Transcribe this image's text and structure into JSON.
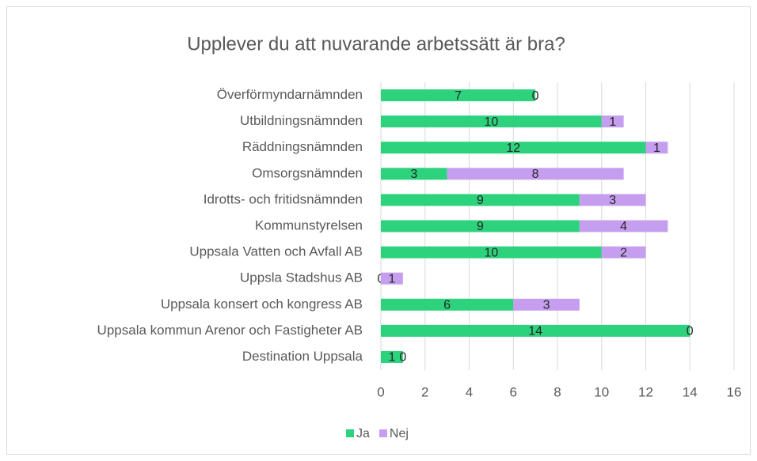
{
  "chart_data": {
    "type": "bar",
    "orientation": "horizontal",
    "stacked": true,
    "title": "Upplever du att nuvarande arbetssätt är bra?",
    "categories": [
      "Överförmyndarnämnden",
      "Utbildningsnämnden",
      "Räddningsnämnden",
      "Omsorgsnämnden",
      "Idrotts- och fritidsnämnden",
      "Kommunstyrelsen",
      "Uppsala Vatten och Avfall AB",
      "Uppsla Stadshus AB",
      "Uppsala konsert och kongress AB",
      "Uppsala kommun Arenor och Fastigheter AB",
      "Destination Uppsala"
    ],
    "series": [
      {
        "name": "Ja",
        "color": "#2dd27c",
        "values": [
          7,
          10,
          12,
          3,
          9,
          9,
          10,
          0,
          6,
          14,
          1
        ]
      },
      {
        "name": "Nej",
        "color": "#c59ef0",
        "values": [
          0,
          1,
          1,
          8,
          3,
          4,
          2,
          1,
          3,
          0,
          0
        ]
      }
    ],
    "xlim": [
      0,
      16
    ],
    "xticks": [
      0,
      2,
      4,
      6,
      8,
      10,
      12,
      14,
      16
    ],
    "grid": true,
    "legend": "bottom"
  }
}
